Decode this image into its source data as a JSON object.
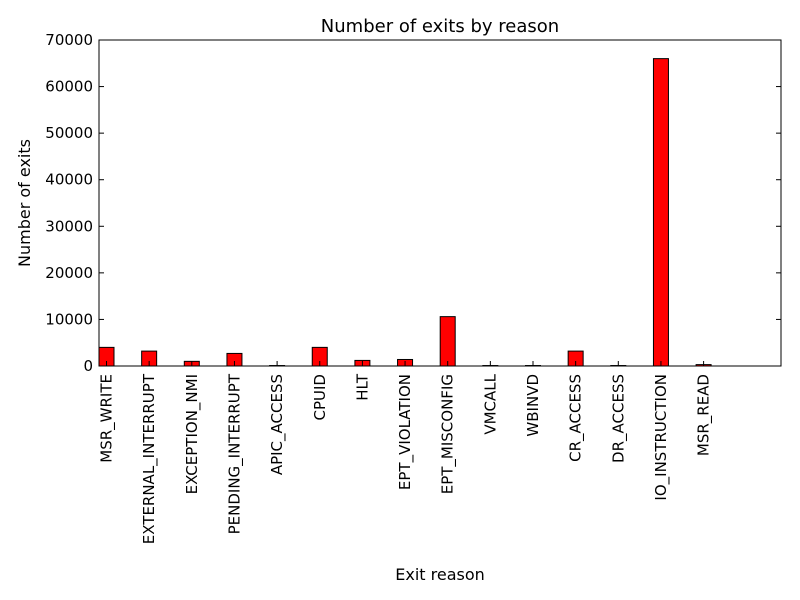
{
  "chart_data": {
    "type": "bar",
    "title": "Number of exits by reason",
    "xlabel": "Exit reason",
    "ylabel": "Number of exits",
    "ylim": [
      0,
      70000
    ],
    "yticks": [
      0,
      10000,
      20000,
      30000,
      40000,
      50000,
      60000,
      70000
    ],
    "grid": false,
    "bar_color": "#ff0000",
    "categories": [
      "MSR_WRITE",
      "EXTERNAL_INTERRUPT",
      "EXCEPTION_NMI",
      "PENDING_INTERRUPT",
      "APIC_ACCESS",
      "CPUID",
      "HLT",
      "EPT_VIOLATION",
      "EPT_MISCONFIG",
      "VMCALL",
      "WBINVD",
      "CR_ACCESS",
      "DR_ACCESS",
      "IO_INSTRUCTION",
      "MSR_READ"
    ],
    "values": [
      4000,
      3200,
      1000,
      2700,
      100,
      4000,
      1200,
      1400,
      10600,
      100,
      100,
      3200,
      100,
      66000,
      300
    ]
  }
}
